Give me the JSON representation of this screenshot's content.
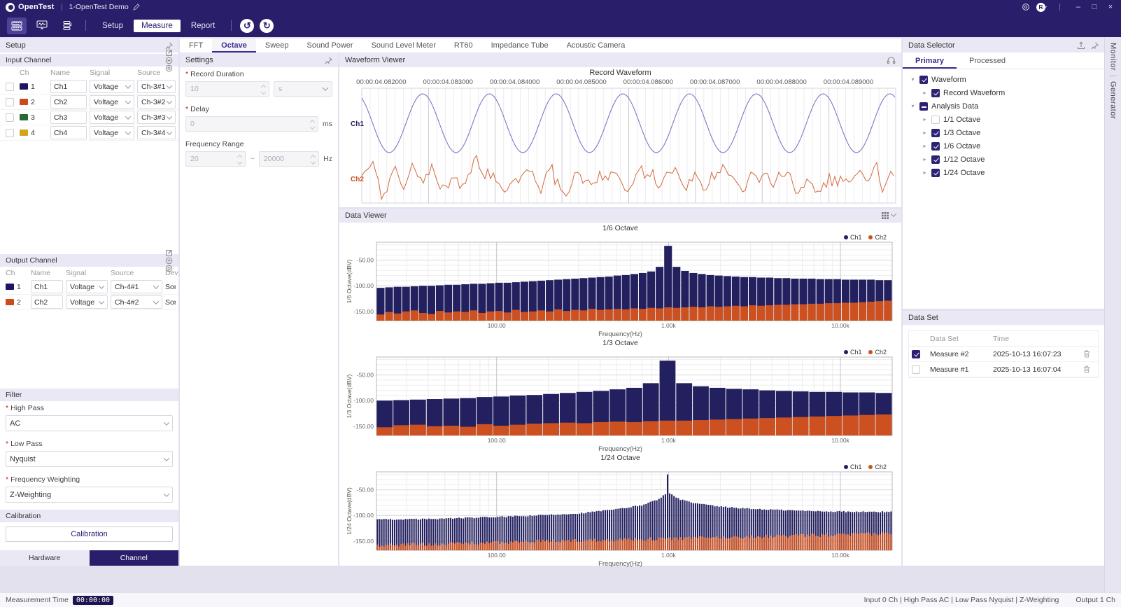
{
  "colors": {
    "accent": "#2b2273",
    "titlebar": "#281e69",
    "bar_ch1": "#23205f",
    "bar_ch2": "#cd5120",
    "wave_ch1": "#7b78c4",
    "wave_ch2": "#d4693e",
    "swatches": [
      "#1c1660",
      "#cc4a1c",
      "#276b33",
      "#d4a41f"
    ]
  },
  "titlebar": {
    "app_name": "OpenTest",
    "doc_title": "1-OpenTest Demo",
    "avatar_initial": "R"
  },
  "toolbar": {
    "nav": [
      "Setup",
      "Measure",
      "Report"
    ],
    "active_nav": "Measure"
  },
  "setup_panel": {
    "title": "Setup",
    "input_channel": {
      "title": "Input Channel",
      "columns": [
        "Ch",
        "Name",
        "Signal",
        "Source"
      ],
      "rows": [
        {
          "ch": "1",
          "name": "Ch1",
          "signal": "Voltage",
          "source": "Ch-3#1",
          "checked": false
        },
        {
          "ch": "2",
          "name": "Ch2",
          "signal": "Voltage",
          "source": "Ch-3#2",
          "checked": false
        },
        {
          "ch": "3",
          "name": "Ch3",
          "signal": "Voltage",
          "source": "Ch-3#3",
          "checked": false
        },
        {
          "ch": "4",
          "name": "Ch4",
          "signal": "Voltage",
          "source": "Ch-3#4",
          "checked": false
        }
      ]
    },
    "output_channel": {
      "title": "Output Channel",
      "columns": [
        "Ch",
        "Name",
        "Signal",
        "Source",
        "Dev"
      ],
      "rows": [
        {
          "ch": "1",
          "name": "Ch1",
          "signal": "Voltage",
          "source": "Ch-4#1",
          "device": "Son"
        },
        {
          "ch": "2",
          "name": "Ch2",
          "signal": "Voltage",
          "source": "Ch-4#2",
          "device": "Son"
        }
      ]
    },
    "filter": {
      "title": "Filter",
      "fields": [
        {
          "label": "High Pass",
          "value": "AC",
          "required": true
        },
        {
          "label": "Low Pass",
          "value": "Nyquist",
          "required": true
        },
        {
          "label": "Frequency Weighting",
          "value": "Z-Weighting",
          "required": true
        }
      ]
    },
    "calibration": {
      "title": "Calibration",
      "button_label": "Calibration"
    },
    "footer_tabs": [
      "Hardware",
      "Channel"
    ],
    "active_footer_tab": "Channel"
  },
  "measure_tabs": {
    "items": [
      "FFT",
      "Octave",
      "Sweep",
      "Sound Power",
      "Sound Level Meter",
      "RT60",
      "Impedance Tube",
      "Acoustic Camera"
    ],
    "active": "Octave"
  },
  "settings_panel": {
    "title": "Settings",
    "record_duration": {
      "label": "Record Duration",
      "value": "10",
      "unit": "s",
      "required": true,
      "disabled": true
    },
    "delay": {
      "label": "Delay",
      "value": "0",
      "unit": "ms",
      "required": true,
      "disabled": true
    },
    "frequency_range": {
      "label": "Frequency Range",
      "min": "20",
      "max": "20000",
      "separator": "~",
      "unit": "Hz",
      "disabled": true
    }
  },
  "waveform_viewer": {
    "title": "Waveform Viewer",
    "chart_title": "Record Waveform",
    "time_labels": [
      "00:00:04.082000",
      "00:00:04.083000",
      "00:00:04.084000",
      "00:00:04.085000",
      "00:00:04.086000",
      "00:00:04.087000",
      "00:00:04.088000",
      "00:00:04.089000"
    ],
    "channel_labels": [
      "Ch1",
      "Ch2"
    ]
  },
  "data_viewer": {
    "title": "Data Viewer"
  },
  "chart_data": {
    "waveform": {
      "type": "line",
      "title": "Record Waveform",
      "x_ticks": [
        "00:00:04.082000",
        "00:00:04.083000",
        "00:00:04.084000",
        "00:00:04.085000",
        "00:00:04.086000",
        "00:00:04.087000",
        "00:00:04.088000",
        "00:00:04.089000"
      ],
      "series": [
        {
          "name": "Ch1",
          "color": "#7b78c4",
          "shape": "sine",
          "frequency_hz": 1000,
          "cycles_visible": 8
        },
        {
          "name": "Ch2",
          "color": "#d4693e",
          "shape": "broadband-noise"
        }
      ]
    },
    "octave_charts": [
      {
        "key": "1/6",
        "type": "bar",
        "title": "1/6 Octave",
        "ylabel": "1/6 Octave(dBV)",
        "xlabel": "Frequency(Hz)",
        "x_scale": "log",
        "freq_range_hz": [
          20,
          20000
        ],
        "ylim": [
          -168,
          -15
        ],
        "legend": [
          "Ch1",
          "Ch2"
        ],
        "y_ticks": [
          {
            "v": -50,
            "label": "-50.00"
          },
          {
            "v": -100,
            "label": "-100.00"
          },
          {
            "v": -150,
            "label": "-150.00"
          }
        ],
        "x_ticks": [
          {
            "f": 100,
            "label": "100.00"
          },
          {
            "f": 1000,
            "label": "1.00k"
          },
          {
            "f": 10000,
            "label": "10.00k"
          }
        ],
        "n_bars": 61,
        "ch1_values": [
          -104,
          -103,
          -102,
          -102,
          -101,
          -100,
          -100,
          -99,
          -98,
          -98,
          -97,
          -96,
          -96,
          -95,
          -94,
          -94,
          -93,
          -92,
          -91,
          -90,
          -89,
          -88,
          -87,
          -86,
          -85,
          -84,
          -83,
          -82,
          -80,
          -79,
          -77,
          -75,
          -72,
          -63,
          -22,
          -63,
          -71,
          -75,
          -77,
          -79,
          -80,
          -81,
          -82,
          -83,
          -83,
          -84,
          -84,
          -85,
          -85,
          -86,
          -86,
          -86,
          -87,
          -87,
          -87,
          -88,
          -88,
          -88,
          -88,
          -89,
          -89
        ],
        "ch2_values": [
          -156,
          -151,
          -154,
          -150,
          -148,
          -153,
          -155,
          -149,
          -152,
          -150,
          -151,
          -148,
          -153,
          -150,
          -149,
          -152,
          -147,
          -151,
          -150,
          -148,
          -150,
          -146,
          -149,
          -147,
          -148,
          -145,
          -147,
          -146,
          -145,
          -146,
          -144,
          -145,
          -143,
          -144,
          -142,
          -143,
          -142,
          -141,
          -142,
          -140,
          -141,
          -140,
          -139,
          -140,
          -138,
          -139,
          -138,
          -137,
          -137,
          -136,
          -136,
          -135,
          -135,
          -134,
          -134,
          -133,
          -133,
          -132,
          -131,
          -130,
          -129
        ]
      },
      {
        "key": "1/3",
        "type": "bar",
        "title": "1/3 Octave",
        "ylabel": "1/3 Octave(dBV)",
        "xlabel": "Frequency(Hz)",
        "x_scale": "log",
        "freq_range_hz": [
          20,
          20000
        ],
        "ylim": [
          -168,
          -15
        ],
        "legend": [
          "Ch1",
          "Ch2"
        ],
        "y_ticks": [
          {
            "v": -50,
            "label": "-50.00"
          },
          {
            "v": -100,
            "label": "-100.00"
          },
          {
            "v": -150,
            "label": "-150.00"
          }
        ],
        "x_ticks": [
          {
            "f": 100,
            "label": "100.00"
          },
          {
            "f": 1000,
            "label": "1.00k"
          },
          {
            "f": 10000,
            "label": "10.00k"
          }
        ],
        "n_bars": 31,
        "ch1_values": [
          -100,
          -99,
          -98,
          -97,
          -96,
          -95,
          -93,
          -92,
          -90,
          -89,
          -87,
          -85,
          -83,
          -81,
          -78,
          -75,
          -66,
          -22,
          -66,
          -72,
          -75,
          -77,
          -78,
          -80,
          -81,
          -82,
          -83,
          -83,
          -84,
          -84,
          -85
        ],
        "ch2_values": [
          -152,
          -148,
          -147,
          -150,
          -149,
          -151,
          -146,
          -149,
          -147,
          -145,
          -144,
          -143,
          -144,
          -142,
          -141,
          -142,
          -140,
          -139,
          -139,
          -138,
          -137,
          -136,
          -135,
          -134,
          -133,
          -132,
          -131,
          -130,
          -129,
          -128,
          -127
        ]
      },
      {
        "key": "1/24",
        "type": "bar",
        "title": "1/24 Octave",
        "ylabel": "1/24 Octave(dBV)",
        "xlabel": "Frequency(Hz)",
        "x_scale": "log",
        "freq_range_hz": [
          20,
          20000
        ],
        "ylim": [
          -168,
          -15
        ],
        "legend": [
          "Ch1",
          "Ch2"
        ],
        "y_ticks": [
          {
            "v": -50,
            "label": "-50.00"
          },
          {
            "v": -100,
            "label": "-100.00"
          },
          {
            "v": -150,
            "label": "-150.00"
          }
        ],
        "x_ticks": [
          {
            "f": 100,
            "label": "100.00"
          },
          {
            "f": 1000,
            "label": "1.00k"
          },
          {
            "f": 10000,
            "label": "10.00k"
          }
        ],
        "n_bars": 240,
        "ch1_envelope": [
          [
            20,
            -108
          ],
          [
            40,
            -107
          ],
          [
            80,
            -104
          ],
          [
            150,
            -101
          ],
          [
            300,
            -96
          ],
          [
            500,
            -88
          ],
          [
            700,
            -80
          ],
          [
            850,
            -70
          ],
          [
            950,
            -60
          ],
          [
            1000,
            -57
          ],
          [
            1050,
            -60
          ],
          [
            1150,
            -68
          ],
          [
            1400,
            -76
          ],
          [
            2000,
            -83
          ],
          [
            3000,
            -87
          ],
          [
            6000,
            -91
          ],
          [
            12000,
            -93
          ],
          [
            20000,
            -93
          ]
        ],
        "ch1_jitter": 1.2,
        "peak": {
          "freq": 1000,
          "value": -20
        },
        "ch2_envelope": [
          [
            20,
            -158
          ],
          [
            50,
            -155
          ],
          [
            100,
            -153
          ],
          [
            200,
            -150
          ],
          [
            500,
            -147
          ],
          [
            1000,
            -145
          ],
          [
            2000,
            -143
          ],
          [
            5000,
            -140
          ],
          [
            10000,
            -138
          ],
          [
            20000,
            -135
          ]
        ],
        "ch2_jitter": 3.5
      }
    ]
  },
  "data_selector": {
    "title": "Data Selector",
    "tabs": [
      "Primary",
      "Processed"
    ],
    "active_tab": "Primary",
    "tree": [
      {
        "label": "Waveform",
        "level": 0,
        "caret": "down",
        "check": "on"
      },
      {
        "label": "Record Waveform",
        "level": 1,
        "caret": "right",
        "check": "on"
      },
      {
        "label": "Analysis Data",
        "level": 0,
        "caret": "down",
        "check": "mixed"
      },
      {
        "label": "1/1 Octave",
        "level": 1,
        "caret": "right",
        "check": "off"
      },
      {
        "label": "1/3 Octave",
        "level": 1,
        "caret": "right",
        "check": "on"
      },
      {
        "label": "1/6 Octave",
        "level": 1,
        "caret": "right",
        "check": "on"
      },
      {
        "label": "1/12 Octave",
        "level": 1,
        "caret": "right",
        "check": "on"
      },
      {
        "label": "1/24 Octave",
        "level": 1,
        "caret": "right",
        "check": "on"
      }
    ]
  },
  "data_set": {
    "title": "Data Set",
    "columns": [
      "Data Set",
      "Time"
    ],
    "rows": [
      {
        "checked": true,
        "name": "Measure #2",
        "time": "2025-10-13 16:07:23"
      },
      {
        "checked": false,
        "name": "Measure #1",
        "time": "2025-10-13 16:07:04"
      }
    ]
  },
  "edge_strip": {
    "tabs": [
      "Monitor",
      "Generator"
    ]
  },
  "status_bar": {
    "left_label": "Measurement Time",
    "time": "00:00:00",
    "right_text": "Input  0 Ch | High Pass  AC | Low Pass  Nyquist |  Z-Weighting",
    "output_text": "Output  1 Ch"
  }
}
